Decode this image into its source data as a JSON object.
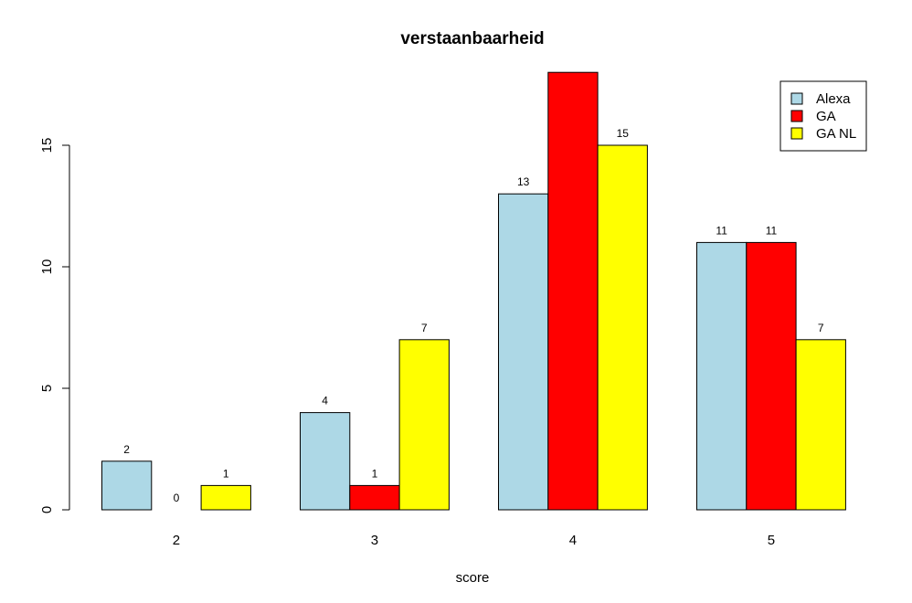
{
  "chart_data": {
    "type": "bar",
    "title": "verstaanbaarheid",
    "xlabel": "score",
    "ylabel": "",
    "categories": [
      "2",
      "3",
      "4",
      "5"
    ],
    "series": [
      {
        "name": "Alexa",
        "color": "#add8e6",
        "values": [
          2,
          4,
          13,
          11
        ]
      },
      {
        "name": "GA",
        "color": "#ff0000",
        "values": [
          0,
          1,
          18,
          11
        ]
      },
      {
        "name": "GA NL",
        "color": "#ffff00",
        "values": [
          1,
          7,
          15,
          7
        ]
      }
    ],
    "data_labels": [
      [
        "2",
        "4",
        "13",
        "11"
      ],
      [
        "0",
        "1",
        "",
        "11"
      ],
      [
        "1",
        "7",
        "15",
        "7"
      ]
    ],
    "ylim": [
      0,
      18
    ],
    "yticks": [
      0,
      5,
      10,
      15
    ],
    "grid": false,
    "legend_position": "top-right"
  }
}
